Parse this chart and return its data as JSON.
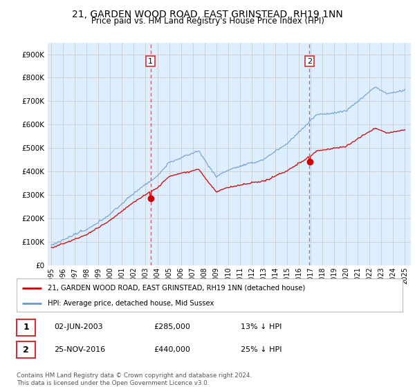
{
  "title": "21, GARDEN WOOD ROAD, EAST GRINSTEAD, RH19 1NN",
  "subtitle": "Price paid vs. HM Land Registry's House Price Index (HPI)",
  "background_color": "#ffffff",
  "plot_bg_color": "#ddeeff",
  "grid_color": "#cccccc",
  "purchase1_year": 2003.42,
  "purchase1_price": 285000,
  "purchase2_year": 2016.9,
  "purchase2_price": 440000,
  "line_red": "#cc0000",
  "line_blue": "#6699cc",
  "legend_text1": "21, GARDEN WOOD ROAD, EAST GRINSTEAD, RH19 1NN (detached house)",
  "legend_text2": "HPI: Average price, detached house, Mid Sussex",
  "table_rows": [
    {
      "num": "1",
      "date": "02-JUN-2003",
      "price": "£285,000",
      "pct": "13% ↓ HPI"
    },
    {
      "num": "2",
      "date": "25-NOV-2016",
      "price": "£440,000",
      "pct": "25% ↓ HPI"
    }
  ],
  "footnote": "Contains HM Land Registry data © Crown copyright and database right 2024.\nThis data is licensed under the Open Government Licence v3.0.",
  "ylim": [
    0,
    950000
  ],
  "yticks": [
    0,
    100000,
    200000,
    300000,
    400000,
    500000,
    600000,
    700000,
    800000,
    900000
  ],
  "ytick_labels": [
    "£0",
    "£100K",
    "£200K",
    "£300K",
    "£400K",
    "£500K",
    "£600K",
    "£700K",
    "£800K",
    "£900K"
  ],
  "xlim_start": 1994.7,
  "xlim_end": 2025.5,
  "xtick_years": [
    1995,
    1996,
    1997,
    1998,
    1999,
    2000,
    2001,
    2002,
    2003,
    2004,
    2005,
    2006,
    2007,
    2008,
    2009,
    2010,
    2011,
    2012,
    2013,
    2014,
    2015,
    2016,
    2017,
    2018,
    2019,
    2020,
    2021,
    2022,
    2023,
    2024,
    2025
  ]
}
